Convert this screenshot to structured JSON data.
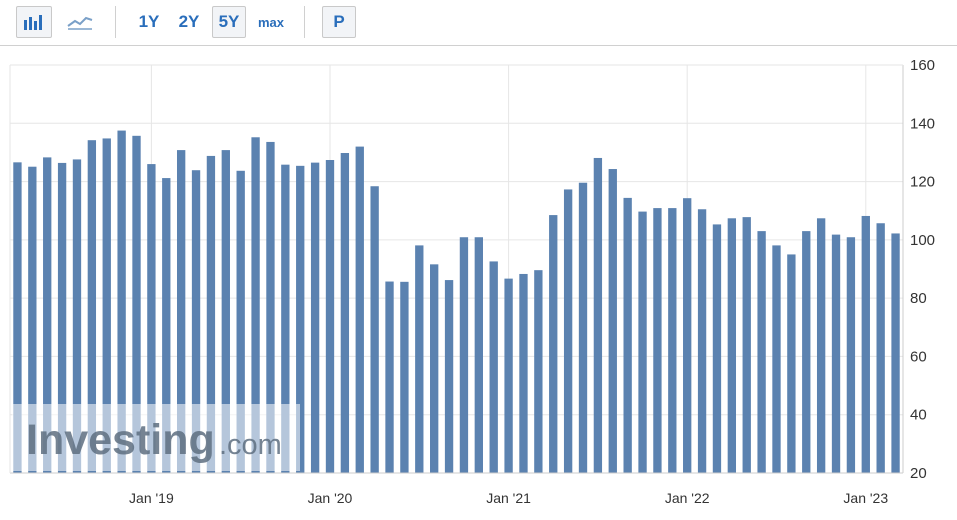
{
  "toolbar": {
    "bar_icon": "bar-chart-icon",
    "line_icon": "line-chart-icon",
    "range_buttons": [
      "1Y",
      "2Y",
      "5Y",
      "max"
    ],
    "active_range": "5Y",
    "p_button": "P"
  },
  "watermark": {
    "brand": "Investing",
    "suffix": ".com"
  },
  "colors": {
    "bar": "#5b82b0",
    "grid": "#e6e6e6",
    "axis": "#cccccc",
    "link": "#2a6ebb"
  },
  "chart_data": {
    "type": "bar",
    "xlabel": "",
    "ylabel": "",
    "ylim": [
      20,
      160
    ],
    "yticks": [
      20,
      40,
      60,
      80,
      100,
      120,
      140,
      160
    ],
    "x_tick_labels": [
      "Jan '19",
      "Jan '20",
      "Jan '21",
      "Jan '22",
      "Jan '23"
    ],
    "x_tick_categories": [
      "2019-01",
      "2020-01",
      "2021-01",
      "2022-01",
      "2023-01"
    ],
    "grid": true,
    "categories": [
      "2018-04",
      "2018-05",
      "2018-06",
      "2018-07",
      "2018-08",
      "2018-09",
      "2018-10",
      "2018-11",
      "2018-12",
      "2019-01",
      "2019-02",
      "2019-03",
      "2019-04",
      "2019-05",
      "2019-06",
      "2019-07",
      "2019-08",
      "2019-09",
      "2019-10",
      "2019-11",
      "2019-12",
      "2020-01",
      "2020-02",
      "2020-03",
      "2020-04",
      "2020-05",
      "2020-06",
      "2020-07",
      "2020-08",
      "2020-09",
      "2020-10",
      "2020-11",
      "2020-12",
      "2021-01",
      "2021-02",
      "2021-03",
      "2021-04",
      "2021-05",
      "2021-06",
      "2021-07",
      "2021-08",
      "2021-09",
      "2021-10",
      "2021-11",
      "2021-12",
      "2022-01",
      "2022-02",
      "2022-03",
      "2022-04",
      "2022-05",
      "2022-06",
      "2022-07",
      "2022-08",
      "2022-09",
      "2022-10",
      "2022-11",
      "2022-12",
      "2023-01",
      "2023-02",
      "2023-03"
    ],
    "values": [
      126.6,
      125.1,
      128.3,
      126.4,
      127.6,
      134.2,
      134.8,
      137.5,
      135.7,
      126.0,
      121.2,
      130.8,
      123.9,
      128.8,
      130.8,
      123.7,
      135.2,
      133.6,
      125.8,
      125.4,
      126.5,
      127.4,
      129.8,
      132.0,
      118.4,
      85.7,
      85.6,
      98.1,
      91.6,
      86.2,
      100.9,
      100.9,
      92.6,
      86.7,
      88.3,
      89.6,
      108.5,
      117.3,
      119.6,
      128.1,
      124.3,
      114.4,
      109.7,
      110.9,
      110.9,
      114.3,
      110.5,
      105.3,
      107.4,
      107.8,
      103.0,
      98.1,
      95.0,
      103.0,
      107.4,
      101.8,
      100.9,
      108.2,
      105.7,
      102.2
    ]
  }
}
